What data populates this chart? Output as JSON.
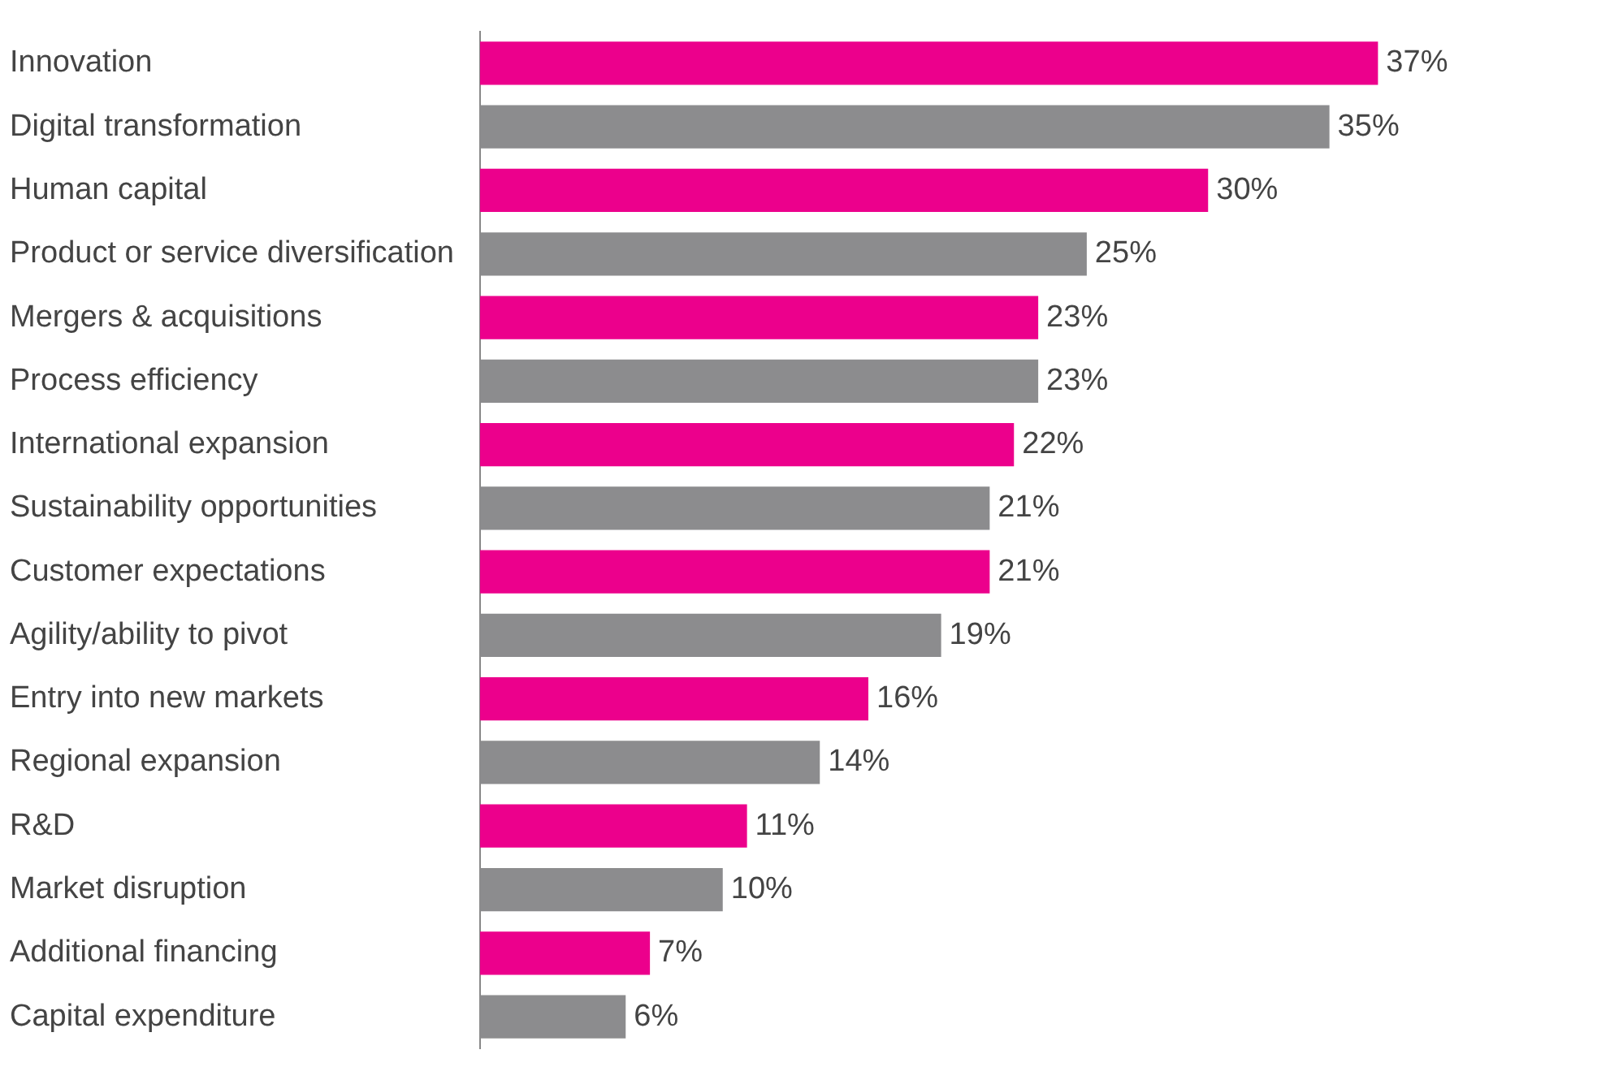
{
  "chart_data": {
    "type": "bar",
    "orientation": "horizontal",
    "categories": [
      "Innovation",
      "Digital transformation",
      "Human capital",
      "Product or service diversification",
      "Mergers & acquisitions",
      "Process efficiency",
      "International expansion",
      "Sustainability opportunities",
      "Customer expectations",
      "Agility/ability to pivot",
      "Entry into new markets",
      "Regional expansion",
      "R&D",
      "Market disruption",
      "Additional financing",
      "Capital expenditure"
    ],
    "values": [
      37,
      35,
      30,
      25,
      23,
      23,
      22,
      21,
      21,
      19,
      16,
      14,
      11,
      10,
      7,
      6
    ],
    "value_labels": [
      "37%",
      "35%",
      "30%",
      "25%",
      "23%",
      "23%",
      "22%",
      "21%",
      "21%",
      "19%",
      "16%",
      "14%",
      "11%",
      "10%",
      "7%",
      "6%"
    ],
    "colors": [
      "#ec008c",
      "#8c8c8e",
      "#ec008c",
      "#8c8c8e",
      "#ec008c",
      "#8c8c8e",
      "#ec008c",
      "#8c8c8e",
      "#ec008c",
      "#8c8c8e",
      "#ec008c",
      "#8c8c8e",
      "#ec008c",
      "#8c8c8e",
      "#ec008c",
      "#8c8c8e"
    ],
    "grid": false,
    "legend": false,
    "tick_labels": "y"
  }
}
